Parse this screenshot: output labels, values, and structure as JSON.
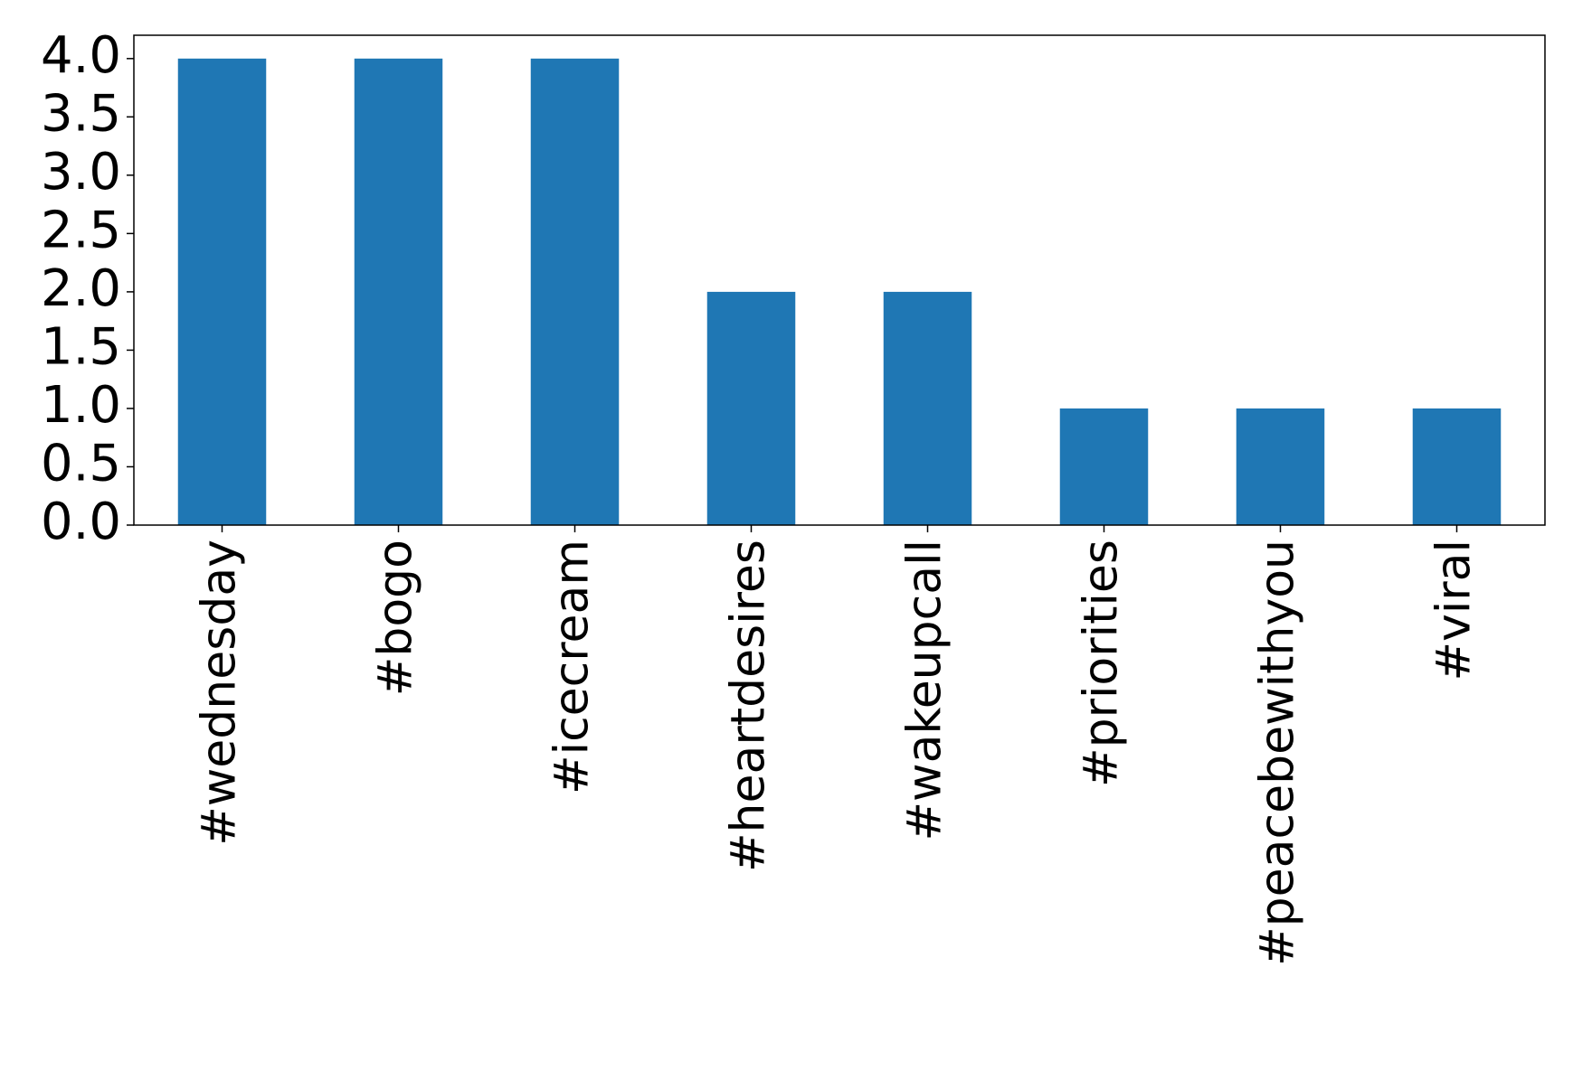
{
  "chart_data": {
    "type": "bar",
    "categories": [
      "#wednesday",
      "#bogo",
      "#icecream",
      "#heartdesires",
      "#wakeupcall",
      "#priorities",
      "#peacebewithyou",
      "#viral"
    ],
    "values": [
      4,
      4,
      4,
      2,
      2,
      1,
      1,
      1
    ],
    "color": "#1f77b4",
    "ylim": [
      0,
      4.2
    ],
    "yticks": [
      {
        "value": 0,
        "label": "0.0"
      },
      {
        "value": 0.5,
        "label": "0.5"
      },
      {
        "value": 1,
        "label": "1.0"
      },
      {
        "value": 1.5,
        "label": "1.5"
      },
      {
        "value": 2,
        "label": "2.0"
      },
      {
        "value": 2.5,
        "label": "2.5"
      },
      {
        "value": 3,
        "label": "3.0"
      },
      {
        "value": 3.5,
        "label": "3.5"
      },
      {
        "value": 4,
        "label": "4.0"
      }
    ],
    "grid": false
  }
}
